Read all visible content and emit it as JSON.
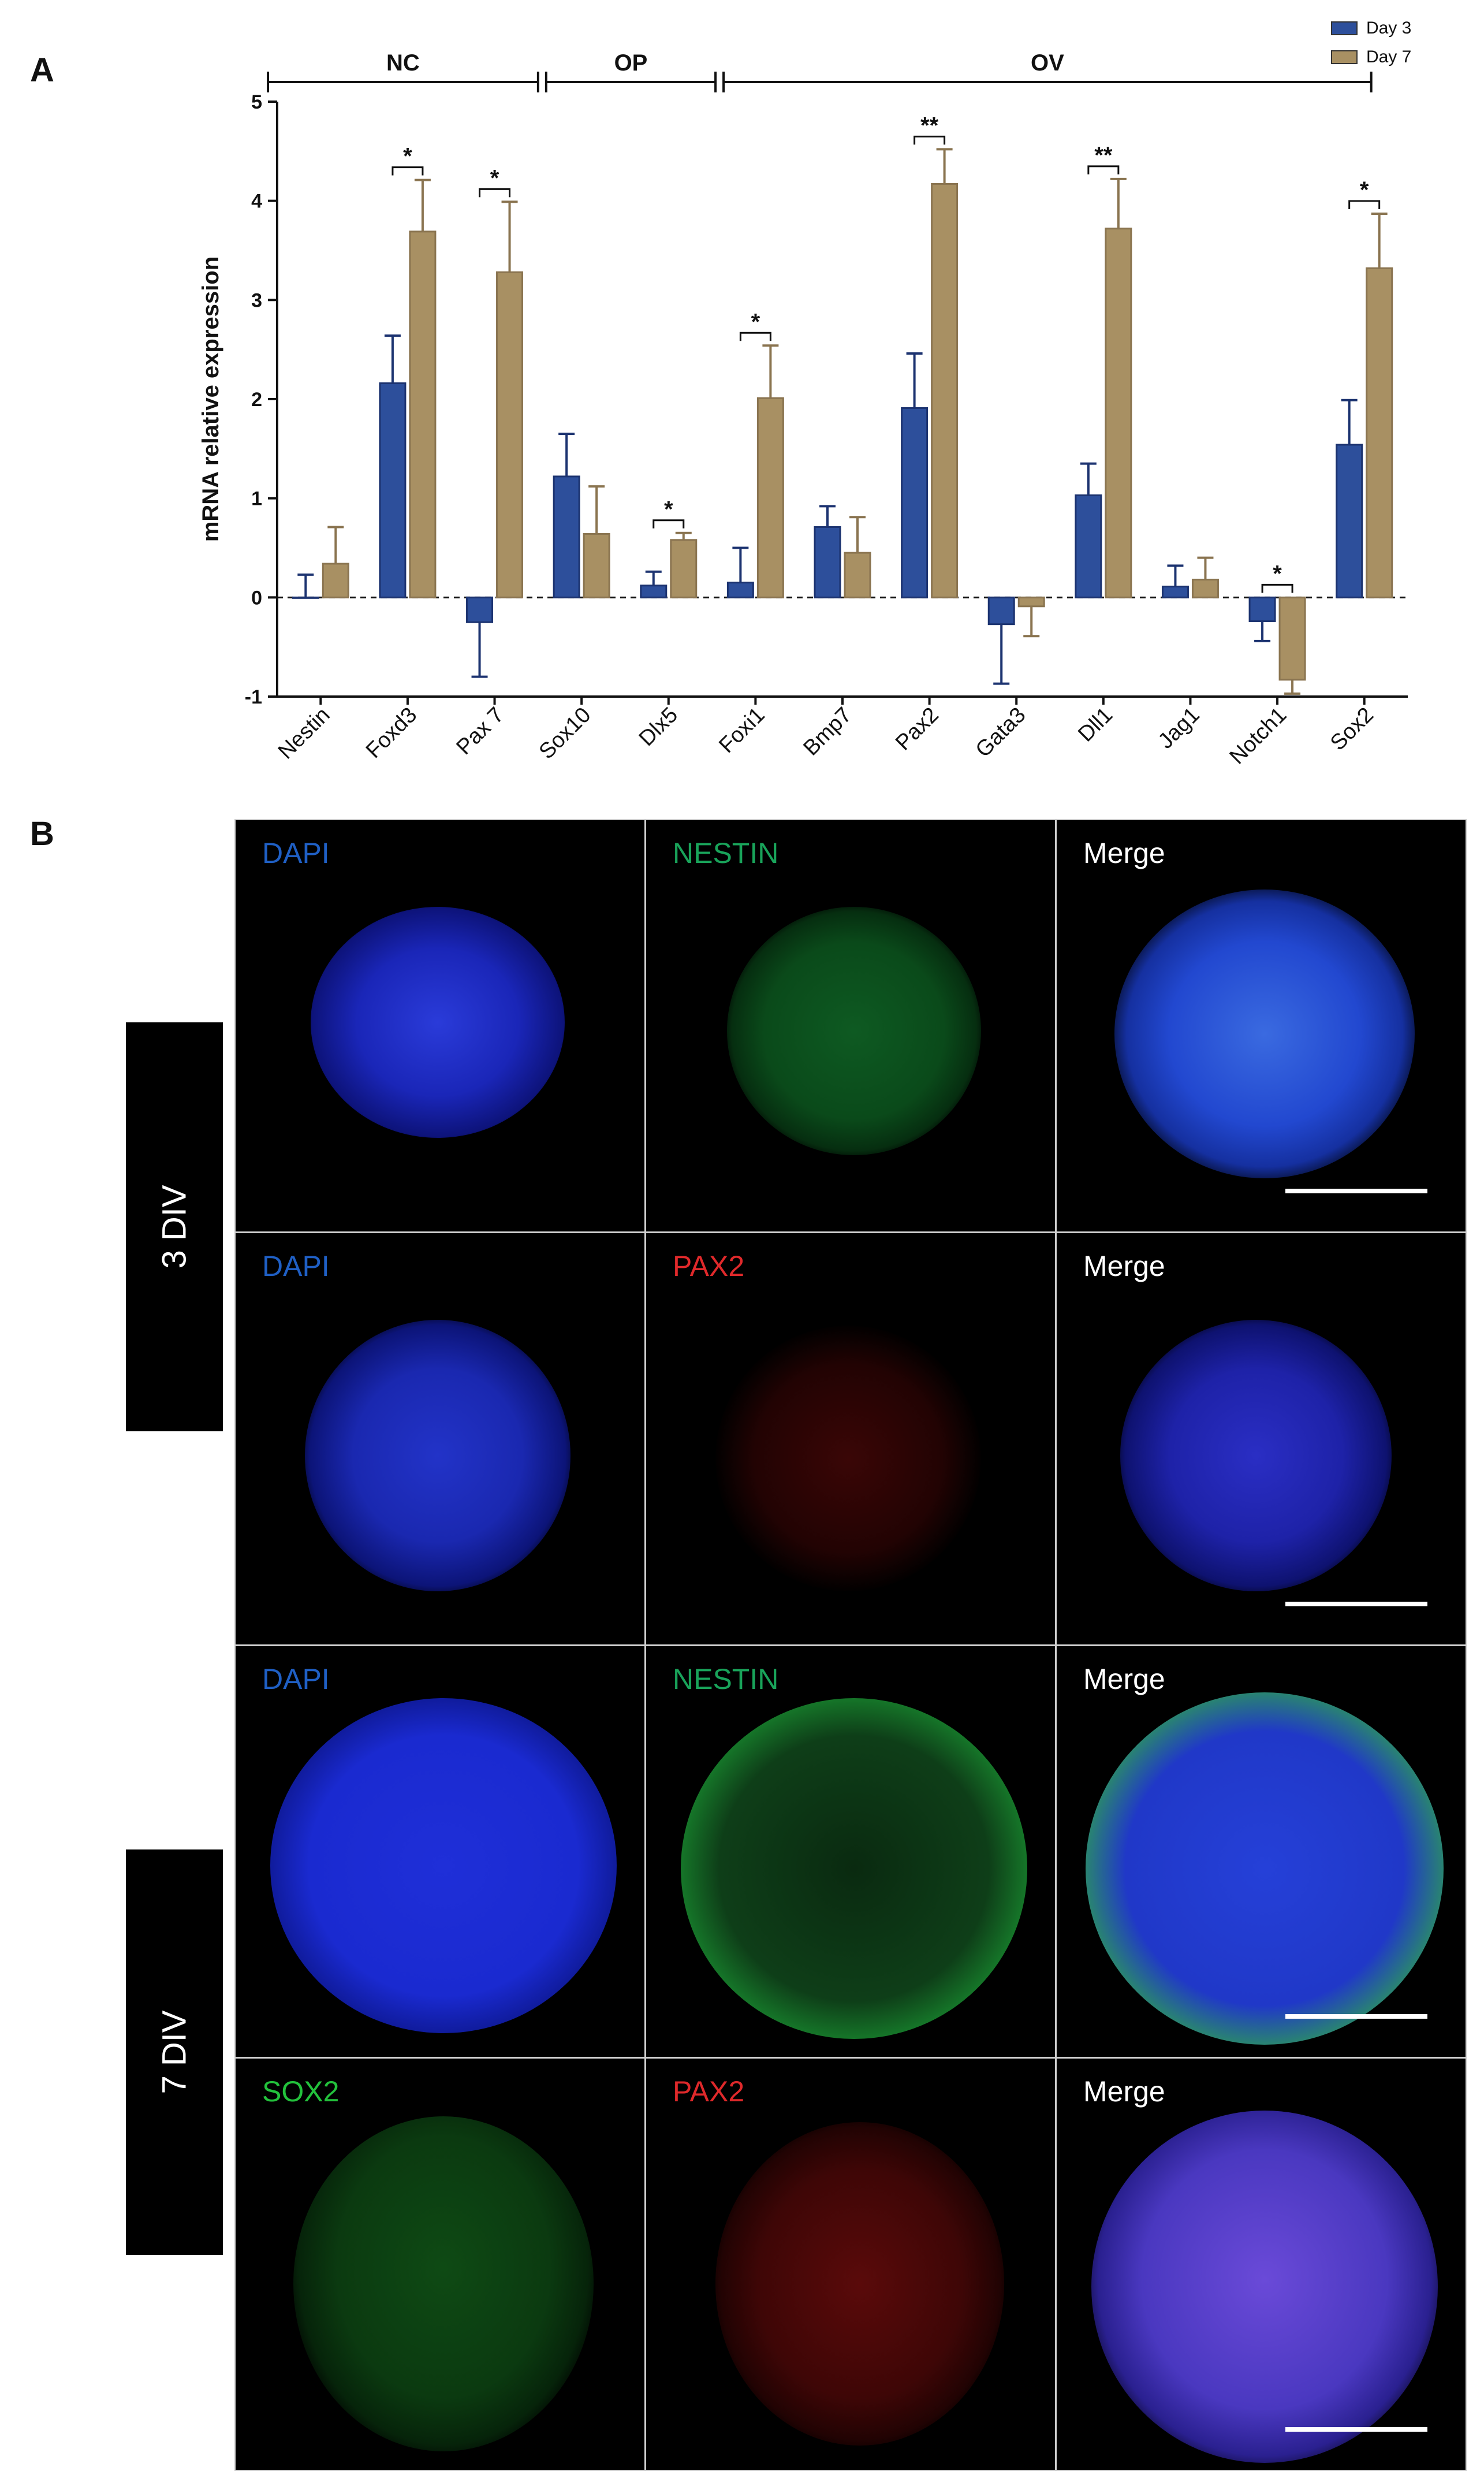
{
  "panel_a_label": "A",
  "panel_b_label": "B",
  "chart_data": {
    "type": "bar",
    "title": "",
    "xlabel": "",
    "ylabel": "mRNA relative expression",
    "ylim": [
      -1,
      5
    ],
    "yticks": [
      -1,
      0,
      1,
      2,
      3,
      4,
      5
    ],
    "categories": [
      "Nestin",
      "Foxd3",
      "Pax 7",
      "Sox10",
      "Dlx5",
      "Foxi1",
      "Bmp7",
      "Pax2",
      "Gata3",
      "Dll1",
      "Jag1",
      "Notch1",
      "Sox2"
    ],
    "series": [
      {
        "name": "Day 3",
        "color": "#2d4f9b",
        "values": [
          0.0,
          2.16,
          -0.25,
          1.22,
          0.12,
          0.15,
          0.71,
          1.91,
          -0.27,
          1.03,
          0.11,
          -0.24,
          1.54
        ],
        "errors": [
          0.23,
          0.48,
          0.55,
          0.43,
          0.14,
          0.35,
          0.21,
          0.55,
          0.6,
          0.32,
          0.21,
          0.2,
          0.45
        ]
      },
      {
        "name": "Day 7",
        "color": "#a89063",
        "values": [
          0.34,
          3.69,
          3.28,
          0.64,
          0.58,
          2.01,
          0.45,
          4.17,
          -0.09,
          3.72,
          0.18,
          -0.83,
          3.32
        ],
        "errors": [
          0.37,
          0.52,
          0.71,
          0.48,
          0.07,
          0.53,
          0.36,
          0.35,
          0.3,
          0.5,
          0.22,
          0.14,
          0.55
        ]
      }
    ],
    "reference_line": 0,
    "groups": [
      {
        "label": "NC",
        "categories": [
          "Nestin",
          "Foxd3",
          "Pax 7"
        ]
      },
      {
        "label": "OP",
        "categories": [
          "Pax 7",
          "Sox10",
          "Dlx5"
        ]
      },
      {
        "label": "OV",
        "categories": [
          "Dlx5",
          "Foxi1",
          "Bmp7",
          "Pax2",
          "Gata3",
          "Dll1",
          "Jag1",
          "Notch1",
          "Sox2"
        ]
      }
    ],
    "significance": [
      {
        "category": "Foxd3",
        "label": "*"
      },
      {
        "category": "Pax 7",
        "label": "*"
      },
      {
        "category": "Dlx5",
        "label": "*"
      },
      {
        "category": "Foxi1",
        "label": "*"
      },
      {
        "category": "Pax2",
        "label": "**"
      },
      {
        "category": "Dll1",
        "label": "**"
      },
      {
        "category": "Notch1",
        "label": "*"
      },
      {
        "category": "Sox2",
        "label": "*"
      }
    ],
    "legend_position": "top-right"
  },
  "panel_b": {
    "row_groups": [
      {
        "label": "3 DIV"
      },
      {
        "label": "7 DIV"
      }
    ],
    "rows": [
      [
        {
          "label": "DAPI",
          "color": "#1f5fc4"
        },
        {
          "label": "NESTIN",
          "color": "#19a35a"
        },
        {
          "label": "Merge",
          "color": "#ffffff"
        }
      ],
      [
        {
          "label": "DAPI",
          "color": "#1f5fc4"
        },
        {
          "label": "PAX2",
          "color": "#e0292b"
        },
        {
          "label": "Merge",
          "color": "#ffffff"
        }
      ],
      [
        {
          "label": "DAPI",
          "color": "#1f5fc4"
        },
        {
          "label": "NESTIN",
          "color": "#19a35a"
        },
        {
          "label": "Merge",
          "color": "#ffffff"
        }
      ],
      [
        {
          "label": "SOX2",
          "color": "#23c23c"
        },
        {
          "label": "PAX2",
          "color": "#e0292b"
        },
        {
          "label": "Merge",
          "color": "#ffffff"
        }
      ]
    ]
  }
}
